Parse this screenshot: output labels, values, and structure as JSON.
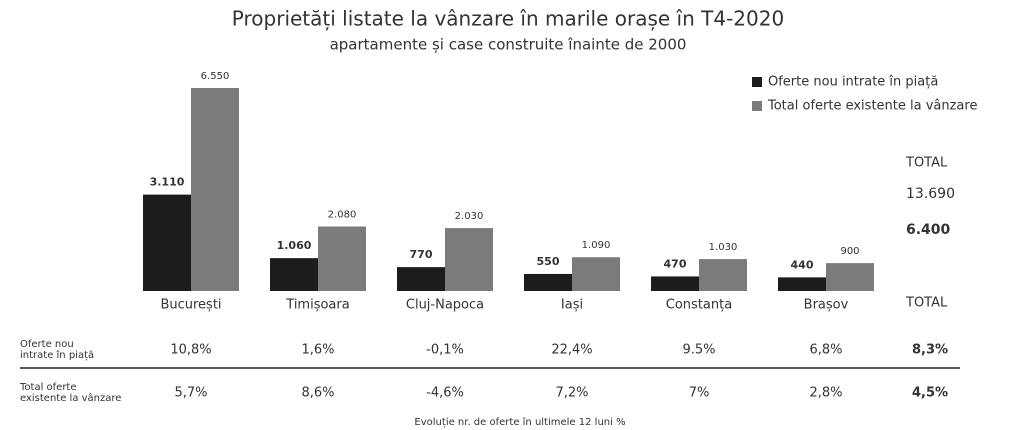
{
  "chart_data": {
    "type": "bar",
    "title": "Proprietăți listate la vânzare în marile orașe în T4-2020",
    "subtitle": "apartamente și case construite înainte de 2000",
    "categories": [
      "București",
      "Timișoara",
      "Cluj-Napoca",
      "Iași",
      "Constanța",
      "Brașov"
    ],
    "series": [
      {
        "name": "Oferte nou intrate în piață",
        "color": "#1c1c1c",
        "values": [
          3110,
          1060,
          770,
          550,
          470,
          440
        ],
        "value_labels": [
          "3.110",
          "1.060",
          "770",
          "550",
          "470",
          "440"
        ]
      },
      {
        "name": "Total oferte existente la vânzare",
        "color": "#7b7b7b",
        "values": [
          6550,
          2080,
          2030,
          1090,
          1030,
          900
        ],
        "value_labels": [
          "6.550",
          "2.080",
          "2.030",
          "1.090",
          "1.030",
          "900"
        ]
      }
    ],
    "legend": "top-right",
    "totals": {
      "label": "TOTAL",
      "values": [
        6400,
        13690
      ],
      "value_labels": [
        "6.400",
        "13.690"
      ]
    }
  },
  "table": {
    "header": "TOTAL",
    "rows": [
      {
        "label": [
          "Oferte nou",
          "intrate în piață"
        ],
        "cells": [
          "10,8%",
          "1,6%",
          "-0,1%",
          "22,4%",
          "9.5%",
          "6,8%",
          "8,3%"
        ]
      },
      {
        "label": [
          "Total oferte",
          "existente la vânzare"
        ],
        "cells": [
          "5,7%",
          "8,6%",
          "-4,6%",
          "7,2%",
          "7%",
          "2,8%",
          "4,5%"
        ]
      }
    ],
    "caption": "Evoluție nr. de oferte în ultimele 12 luni %"
  }
}
